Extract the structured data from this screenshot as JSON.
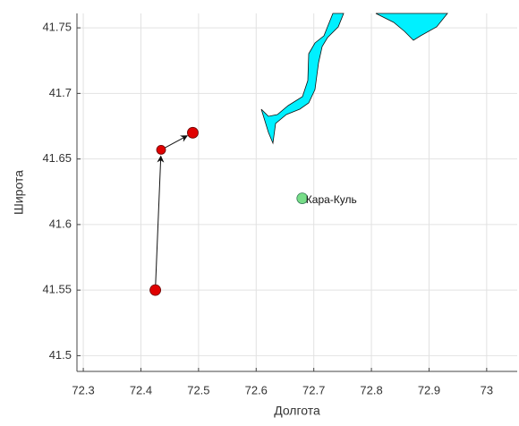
{
  "chart_data": {
    "type": "scatter",
    "xlabel": "Долгота",
    "ylabel": "Широта",
    "xlim": [
      72.289,
      73.053
    ],
    "ylim": [
      41.488,
      41.761
    ],
    "xticks": [
      72.3,
      72.4,
      72.5,
      72.6,
      72.7,
      72.8,
      72.9,
      73
    ],
    "yticks": [
      41.5,
      41.55,
      41.6,
      41.65,
      41.7,
      41.75
    ],
    "grid": true,
    "x": [
      72.425,
      72.435,
      72.49
    ],
    "y": [
      41.55,
      41.657,
      41.67
    ],
    "color": "#e00000",
    "connect": "arrows",
    "landmark": {
      "label": "Кара-Куль",
      "x": 72.68,
      "y": 41.62,
      "color": "#77dd88"
    }
  }
}
